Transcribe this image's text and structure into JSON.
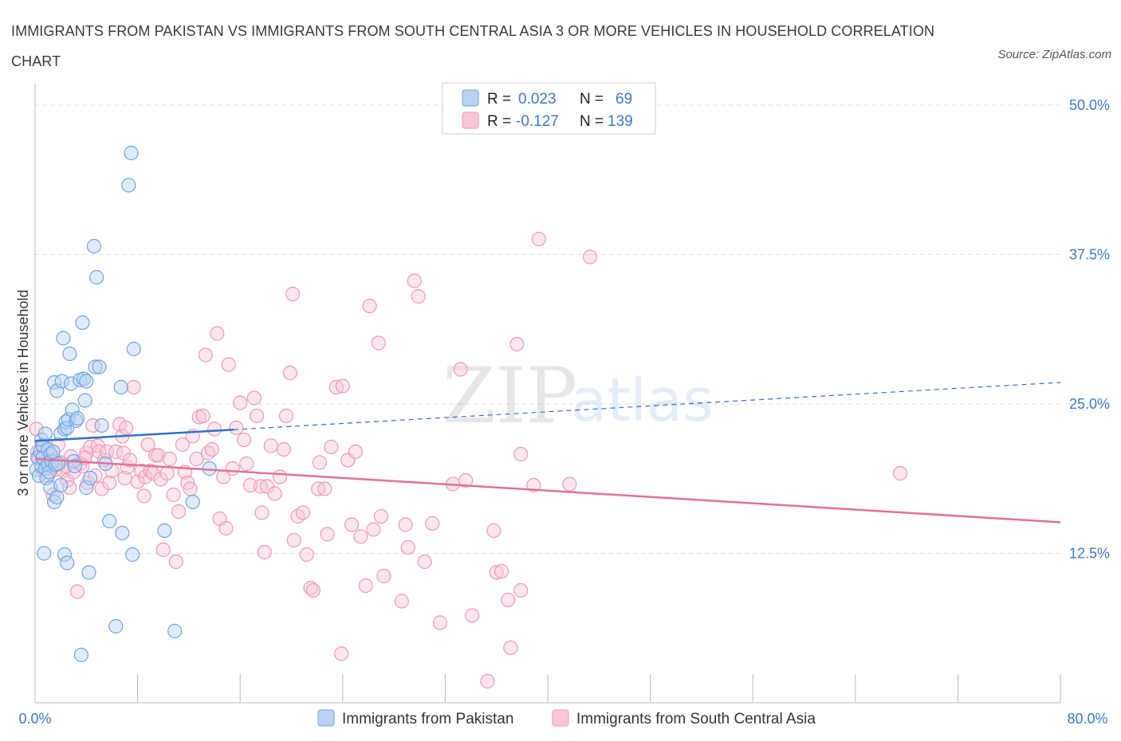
{
  "title": "IMMIGRANTS FROM PAKISTAN VS IMMIGRANTS FROM SOUTH CENTRAL ASIA 3 OR MORE VEHICLES IN HOUSEHOLD CORRELATION CHART",
  "source": "Source: ZipAtlas.com",
  "watermark": {
    "zip": "ZIP",
    "atlas": "atlas"
  },
  "colors": {
    "pakistan": "#6fa3e0",
    "pakistan_fill": "#b9d2f4",
    "south_central_asia": "#ee97b4",
    "south_central_asia_fill": "#f7c7d8",
    "trend_pakistan": "#2f6fcc",
    "trend_sca": "#e3709b",
    "axis_label": "#3b78c9",
    "grid": "#dcdcdc"
  },
  "legend": {
    "r_label": "R =",
    "n_label": "N =",
    "entries": [
      {
        "r": "0.023",
        "n": "69"
      },
      {
        "r": "-0.127",
        "n": "139"
      }
    ]
  },
  "chart_data": {
    "type": "scatter",
    "title": "IMMIGRANTS FROM PAKISTAN VS IMMIGRANTS FROM SOUTH CENTRAL ASIA 3 OR MORE VEHICLES IN HOUSEHOLD CORRELATION CHART",
    "xlabel": "",
    "ylabel": "3 or more Vehicles in Household",
    "xlim": [
      0,
      80
    ],
    "ylim": [
      0,
      50
    ],
    "x_tick_labels": {
      "left": "0.0%",
      "right": "80.0%"
    },
    "y_ticks": [
      {
        "value": 12.5,
        "label": "12.5%"
      },
      {
        "value": 25,
        "label": "25.0%"
      },
      {
        "value": 37.5,
        "label": "37.5%"
      },
      {
        "value": 50,
        "label": "50.0%"
      }
    ],
    "series": [
      {
        "name": "Immigrants from Pakistan",
        "r": 0.023,
        "n": 69,
        "trend": {
          "x0": 0,
          "y0": 21.9,
          "x1": 80,
          "y1": 26.8,
          "solid_until": 15.5
        },
        "points": [
          [
            0.1,
            19.5
          ],
          [
            0.2,
            20.5
          ],
          [
            0.3,
            19.0
          ],
          [
            0.4,
            21.0
          ],
          [
            0.5,
            22.0
          ],
          [
            0.5,
            19.8
          ],
          [
            0.6,
            20.5
          ],
          [
            0.6,
            21.5
          ],
          [
            0.7,
            12.5
          ],
          [
            0.8,
            19.6
          ],
          [
            0.8,
            22.5
          ],
          [
            0.9,
            18.8
          ],
          [
            1.0,
            20.0
          ],
          [
            1.0,
            21.2
          ],
          [
            1.1,
            19.3
          ],
          [
            1.2,
            18.0
          ],
          [
            1.2,
            20.8
          ],
          [
            1.3,
            20.2
          ],
          [
            1.4,
            21.0
          ],
          [
            1.5,
            16.8
          ],
          [
            1.5,
            26.8
          ],
          [
            1.6,
            19.9
          ],
          [
            1.7,
            26.1
          ],
          [
            1.7,
            17.2
          ],
          [
            1.8,
            20.0
          ],
          [
            2.0,
            18.2
          ],
          [
            2.0,
            22.5
          ],
          [
            2.1,
            26.9
          ],
          [
            2.2,
            30.5
          ],
          [
            2.3,
            22.9
          ],
          [
            2.3,
            12.4
          ],
          [
            2.4,
            23.5
          ],
          [
            2.5,
            23.0
          ],
          [
            2.5,
            11.7
          ],
          [
            2.6,
            23.7
          ],
          [
            2.7,
            29.2
          ],
          [
            2.8,
            26.7
          ],
          [
            2.9,
            24.5
          ],
          [
            3.0,
            20.2
          ],
          [
            3.1,
            19.8
          ],
          [
            3.2,
            23.6
          ],
          [
            3.3,
            23.8
          ],
          [
            3.5,
            27.0
          ],
          [
            3.6,
            4.0
          ],
          [
            3.7,
            31.8
          ],
          [
            3.8,
            27.1
          ],
          [
            3.9,
            25.3
          ],
          [
            4.0,
            26.9
          ],
          [
            4.0,
            18.0
          ],
          [
            4.2,
            10.9
          ],
          [
            4.3,
            18.8
          ],
          [
            4.6,
            38.2
          ],
          [
            4.7,
            28.1
          ],
          [
            4.8,
            35.6
          ],
          [
            5.0,
            28.1
          ],
          [
            5.2,
            23.2
          ],
          [
            5.5,
            20.0
          ],
          [
            5.8,
            15.2
          ],
          [
            6.3,
            6.4
          ],
          [
            6.7,
            26.4
          ],
          [
            6.8,
            14.2
          ],
          [
            7.3,
            43.3
          ],
          [
            7.5,
            46.0
          ],
          [
            7.6,
            12.4
          ],
          [
            7.7,
            29.6
          ],
          [
            10.1,
            14.4
          ],
          [
            10.9,
            6.0
          ],
          [
            12.3,
            16.8
          ],
          [
            13.6,
            19.6
          ]
        ]
      },
      {
        "name": "Immigrants from South Central Asia",
        "r": -0.127,
        "n": 139,
        "trend": {
          "x0": 0,
          "y0": 20.4,
          "x1": 80,
          "y1": 15.1
        },
        "points": [
          [
            0.1,
            22.9
          ],
          [
            0.2,
            21.0
          ],
          [
            0.3,
            20.5
          ],
          [
            0.5,
            19.6
          ],
          [
            0.6,
            21.6
          ],
          [
            0.8,
            20.2
          ],
          [
            1.0,
            19.0
          ],
          [
            1.2,
            20.8
          ],
          [
            1.4,
            17.4
          ],
          [
            1.5,
            20.4
          ],
          [
            1.6,
            19.5
          ],
          [
            1.8,
            21.6
          ],
          [
            2.0,
            20.1
          ],
          [
            2.2,
            19.4
          ],
          [
            2.5,
            18.6
          ],
          [
            2.7,
            18.0
          ],
          [
            2.8,
            20.6
          ],
          [
            3.0,
            19.3
          ],
          [
            3.3,
            9.3
          ],
          [
            3.5,
            20.0
          ],
          [
            3.7,
            19.8
          ],
          [
            4.0,
            20.9
          ],
          [
            4.1,
            18.4
          ],
          [
            4.3,
            21.4
          ],
          [
            4.5,
            23.2
          ],
          [
            4.7,
            19.0
          ],
          [
            4.9,
            21.5
          ],
          [
            5.0,
            21.0
          ],
          [
            5.2,
            17.9
          ],
          [
            5.4,
            20.3
          ],
          [
            5.6,
            21.0
          ],
          [
            5.8,
            18.4
          ],
          [
            6.0,
            19.4
          ],
          [
            6.3,
            21.0
          ],
          [
            6.6,
            23.3
          ],
          [
            6.8,
            22.3
          ],
          [
            6.9,
            20.9
          ],
          [
            7.0,
            18.8
          ],
          [
            7.1,
            23.0
          ],
          [
            7.2,
            19.7
          ],
          [
            7.4,
            20.3
          ],
          [
            7.7,
            26.4
          ],
          [
            8.0,
            18.5
          ],
          [
            8.3,
            19.4
          ],
          [
            8.5,
            17.3
          ],
          [
            8.6,
            18.9
          ],
          [
            8.8,
            21.6
          ],
          [
            9.0,
            19.4
          ],
          [
            9.2,
            19.2
          ],
          [
            9.4,
            20.7
          ],
          [
            9.6,
            20.7
          ],
          [
            9.8,
            18.7
          ],
          [
            10.0,
            12.8
          ],
          [
            10.3,
            19.2
          ],
          [
            10.5,
            20.4
          ],
          [
            10.8,
            17.4
          ],
          [
            11.0,
            11.8
          ],
          [
            11.2,
            16.0
          ],
          [
            11.5,
            21.6
          ],
          [
            11.7,
            19.3
          ],
          [
            11.9,
            18.4
          ],
          [
            12.1,
            17.9
          ],
          [
            12.3,
            22.3
          ],
          [
            12.6,
            20.4
          ],
          [
            12.8,
            23.9
          ],
          [
            13.1,
            24.0
          ],
          [
            13.3,
            29.1
          ],
          [
            13.5,
            20.9
          ],
          [
            13.8,
            21.2
          ],
          [
            14.0,
            22.9
          ],
          [
            14.2,
            30.9
          ],
          [
            14.4,
            15.4
          ],
          [
            14.7,
            18.9
          ],
          [
            14.9,
            14.6
          ],
          [
            15.1,
            28.3
          ],
          [
            15.4,
            19.6
          ],
          [
            15.7,
            23.0
          ],
          [
            16.0,
            25.1
          ],
          [
            16.3,
            22.0
          ],
          [
            16.5,
            20.0
          ],
          [
            16.8,
            18.2
          ],
          [
            17.1,
            25.5
          ],
          [
            17.3,
            24.0
          ],
          [
            17.6,
            18.1
          ],
          [
            17.7,
            15.9
          ],
          [
            17.9,
            12.6
          ],
          [
            18.1,
            18.1
          ],
          [
            18.4,
            21.5
          ],
          [
            18.7,
            17.5
          ],
          [
            19.1,
            18.9
          ],
          [
            19.4,
            21.2
          ],
          [
            19.6,
            24.0
          ],
          [
            19.9,
            27.6
          ],
          [
            20.1,
            34.2
          ],
          [
            20.2,
            13.6
          ],
          [
            20.5,
            15.6
          ],
          [
            20.9,
            15.9
          ],
          [
            21.2,
            12.4
          ],
          [
            21.5,
            9.6
          ],
          [
            21.7,
            9.4
          ],
          [
            22.1,
            17.9
          ],
          [
            22.2,
            20.1
          ],
          [
            22.6,
            17.9
          ],
          [
            22.8,
            14.1
          ],
          [
            23.1,
            21.4
          ],
          [
            23.5,
            26.4
          ],
          [
            23.9,
            4.1
          ],
          [
            24.0,
            26.5
          ],
          [
            24.4,
            20.3
          ],
          [
            24.7,
            14.9
          ],
          [
            25.0,
            21.0
          ],
          [
            25.4,
            13.9
          ],
          [
            25.8,
            9.8
          ],
          [
            26.1,
            33.2
          ],
          [
            26.4,
            14.5
          ],
          [
            26.8,
            30.1
          ],
          [
            27.0,
            15.6
          ],
          [
            27.2,
            10.6
          ],
          [
            28.6,
            8.5
          ],
          [
            28.9,
            14.9
          ],
          [
            29.1,
            13.0
          ],
          [
            29.6,
            35.3
          ],
          [
            29.9,
            34.0
          ],
          [
            30.4,
            11.8
          ],
          [
            31.0,
            15.0
          ],
          [
            31.6,
            6.7
          ],
          [
            32.6,
            18.3
          ],
          [
            33.2,
            27.9
          ],
          [
            33.6,
            18.6
          ],
          [
            34.1,
            7.3
          ],
          [
            35.3,
            1.8
          ],
          [
            35.8,
            14.4
          ],
          [
            36.0,
            10.9
          ],
          [
            36.4,
            11.0
          ],
          [
            36.9,
            8.6
          ],
          [
            37.1,
            4.6
          ],
          [
            37.6,
            30.0
          ],
          [
            37.9,
            9.4
          ],
          [
            37.9,
            20.8
          ],
          [
            38.9,
            18.2
          ],
          [
            39.3,
            38.8
          ],
          [
            41.7,
            18.3
          ],
          [
            43.3,
            37.3
          ],
          [
            67.5,
            19.2
          ],
          [
            1.3,
            20.0
          ],
          [
            2.4,
            19.8
          ],
          [
            3.9,
            20.5
          ]
        ]
      }
    ]
  },
  "bottom_legend": {
    "items": [
      "Immigrants from Pakistan",
      "Immigrants from South Central Asia"
    ]
  }
}
